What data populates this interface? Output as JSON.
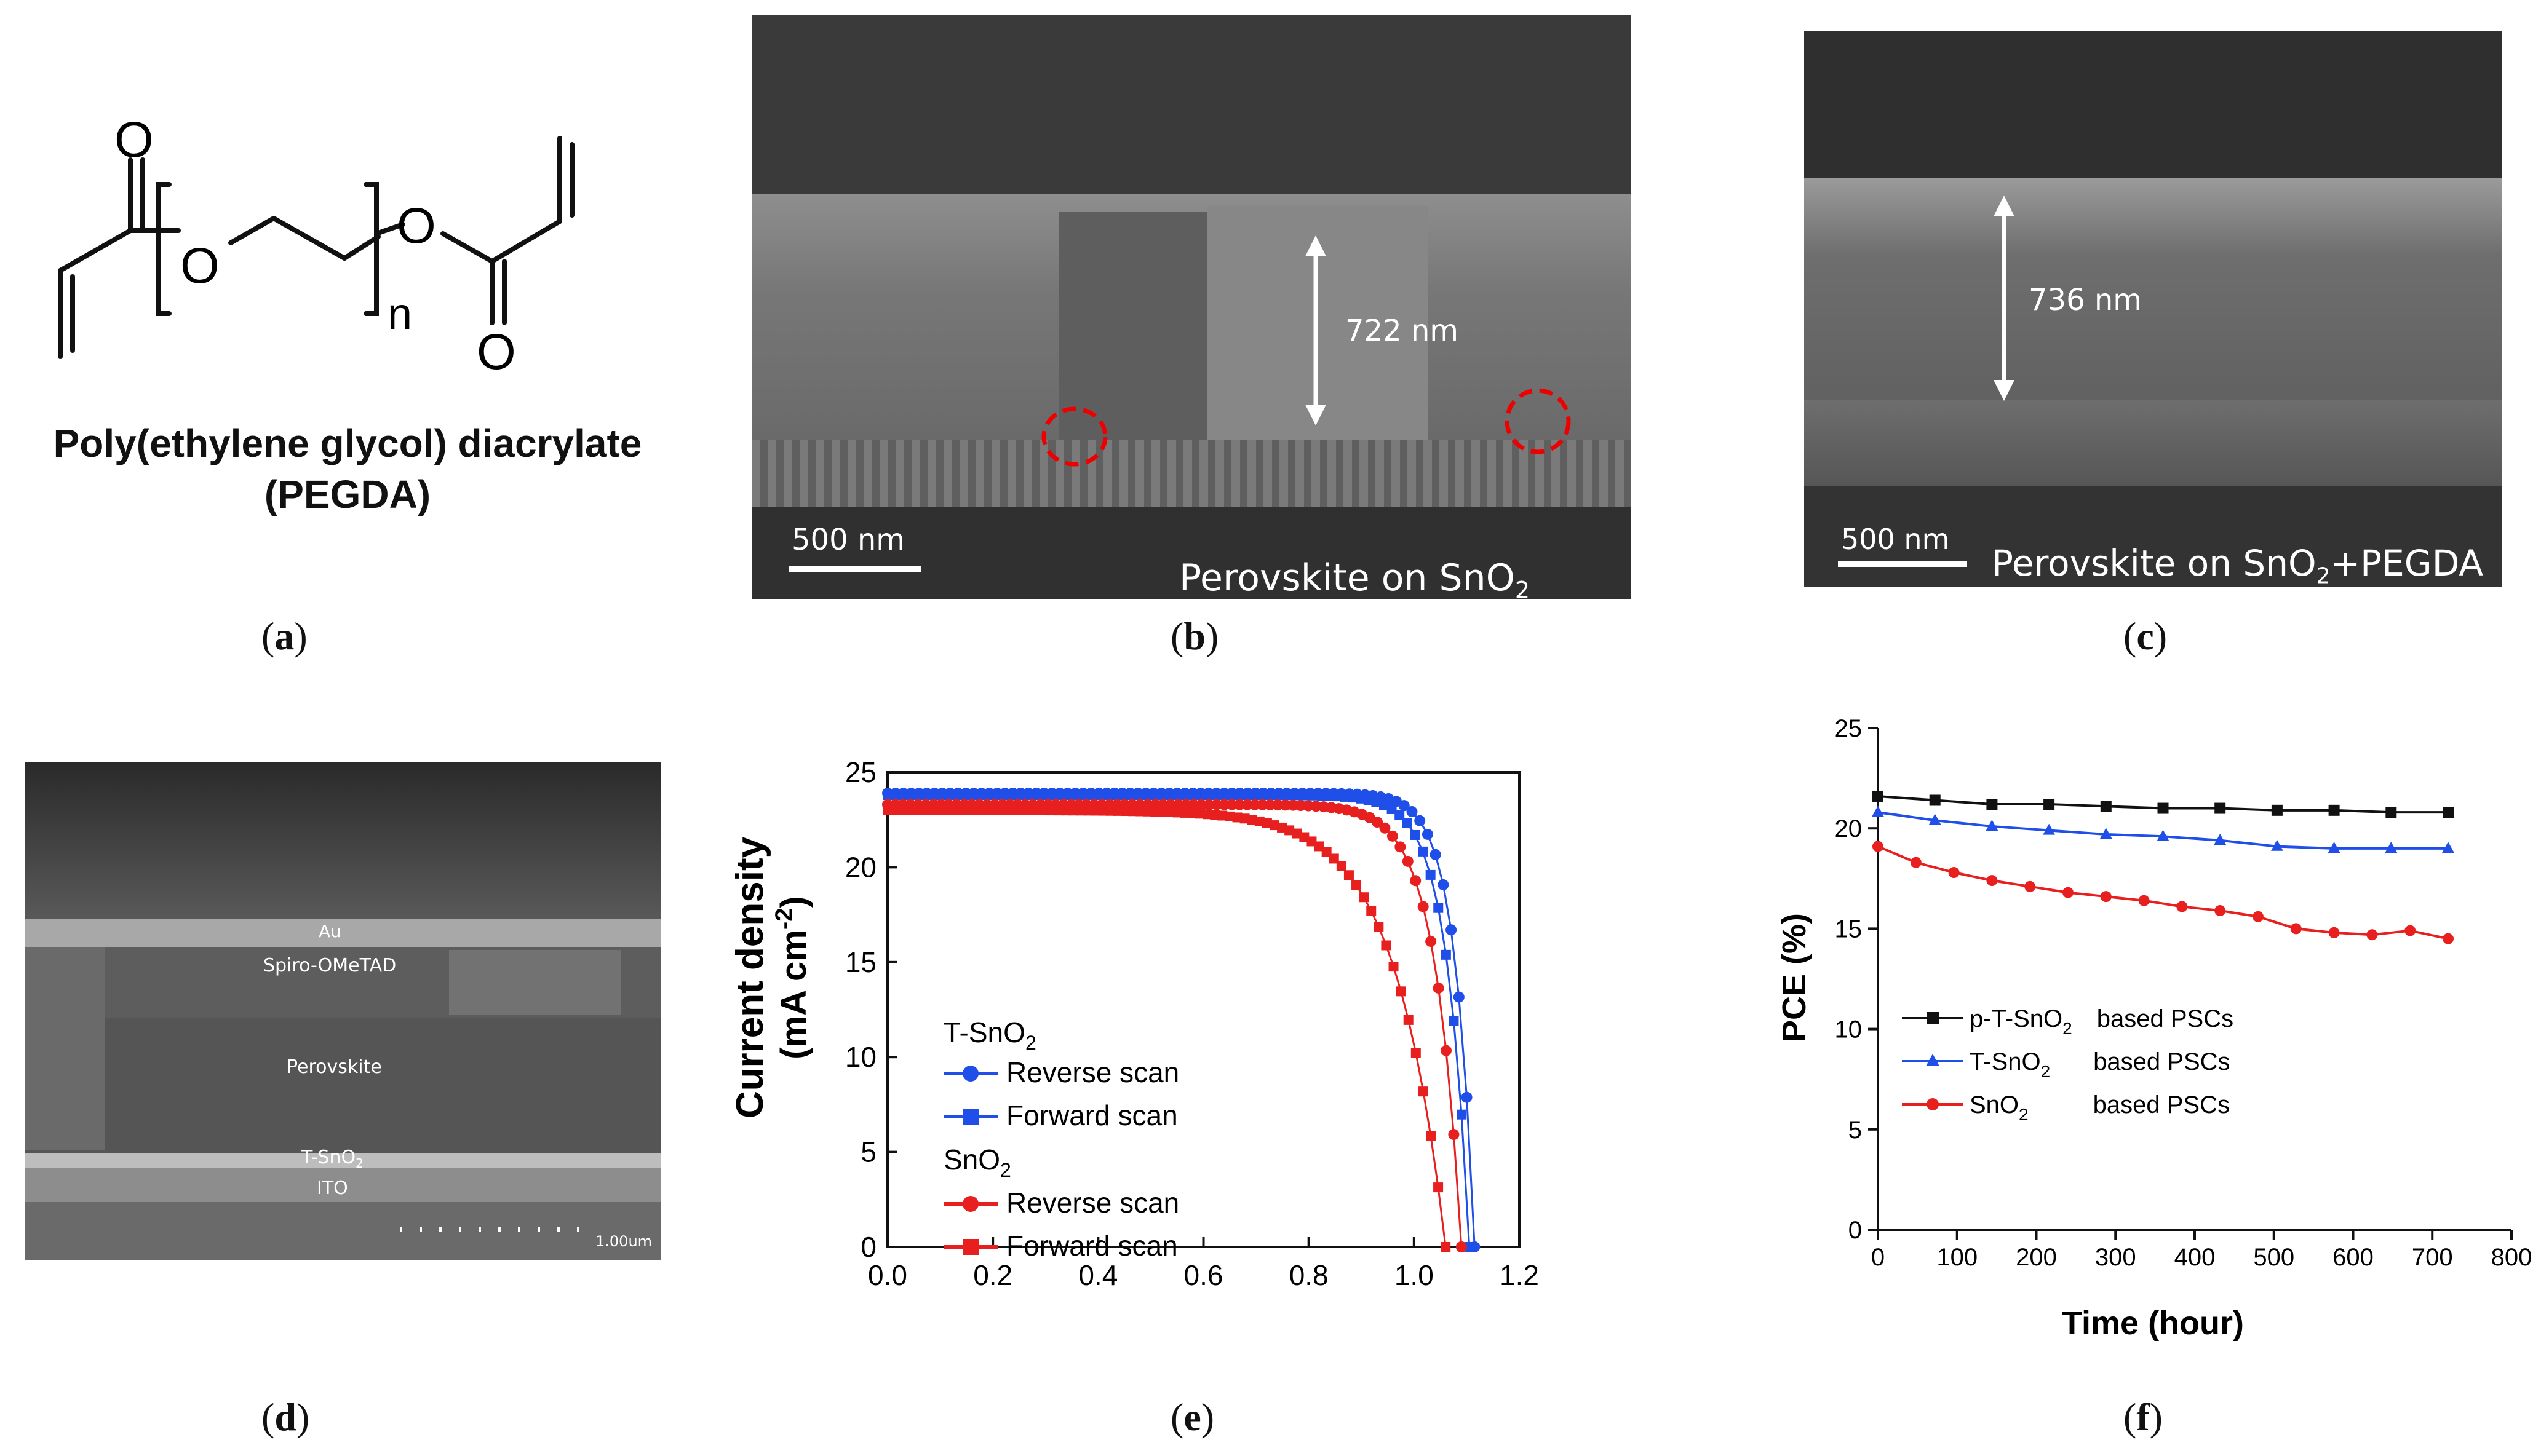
{
  "panels": {
    "a": {
      "label": "a",
      "mol_title": "Poly(ethylene glycol) diacrylate",
      "mol_abbrev": "(PEGDA)",
      "atoms": {
        "o1": "O",
        "o2": "O",
        "o3": "O",
        "o4": "O",
        "n": "n"
      }
    },
    "b": {
      "label": "b",
      "thickness": "722 nm",
      "scalebar": "500 nm",
      "caption_main": "Perovskite on SnO",
      "caption_sub": "2"
    },
    "c": {
      "label": "c",
      "thickness": "736 nm",
      "scalebar": "500 nm",
      "caption_main": "Perovskite on SnO",
      "caption_sub": "2",
      "caption_tail": "+PEGDA"
    },
    "d": {
      "label": "d",
      "layers": {
        "au": "Au",
        "spiro": "Spiro-OMeTAD",
        "perov": "Perovskite",
        "tsno_main": "T-SnO",
        "tsno_sub": "2",
        "ito": "ITO"
      },
      "scalebar": "1.00um"
    },
    "e": {
      "label": "e"
    },
    "f": {
      "label": "f"
    }
  },
  "chart_data": [
    {
      "type": "scatter",
      "panel": "e",
      "title": "",
      "xlabel": "",
      "ylabel": "Current density",
      "ylabel_unit_main": "(mA cm",
      "ylabel_unit_sup": "-2",
      "ylabel_unit_tail": ")",
      "xlim": [
        0,
        1.2
      ],
      "ylim": [
        0,
        25
      ],
      "xticks": [
        "0.0",
        "0.2",
        "0.4",
        "0.6",
        "0.8",
        "1.0",
        "1.2"
      ],
      "yticks": [
        "0",
        "5",
        "10",
        "15",
        "20",
        "25"
      ],
      "legend": {
        "group1_main": "T-SnO",
        "group1_sub": "2",
        "group2_main": "SnO",
        "group2_sub": "2"
      },
      "series": [
        {
          "name": "Reverse scan",
          "group": "T-SnO2",
          "color": "#1f4fe8",
          "marker": "circle",
          "jsc": 23.9,
          "voc": 1.115,
          "shape": 30
        },
        {
          "name": "Forward scan",
          "group": "T-SnO2",
          "color": "#1f4fe8",
          "marker": "square",
          "jsc": 23.8,
          "voc": 1.105,
          "shape": 26
        },
        {
          "name": "Reverse scan",
          "group": "SnO2",
          "color": "#e81f1f",
          "marker": "circle",
          "jsc": 23.3,
          "voc": 1.09,
          "shape": 22
        },
        {
          "name": "Forward scan",
          "group": "SnO2",
          "color": "#e81f1f",
          "marker": "square",
          "jsc": 23.0,
          "voc": 1.06,
          "shape": 11
        }
      ]
    },
    {
      "type": "line",
      "panel": "f",
      "title": "",
      "xlabel": "Time (hour)",
      "ylabel": "PCE (%)",
      "xlim": [
        0,
        800
      ],
      "ylim": [
        0,
        25
      ],
      "xticks": [
        "0",
        "100",
        "200",
        "300",
        "400",
        "500",
        "600",
        "700",
        "800"
      ],
      "yticks": [
        "0",
        "5",
        "10",
        "15",
        "20",
        "25"
      ],
      "series": [
        {
          "name_main": "p-T-SnO",
          "name_sub": "2",
          "suffix": "based PSCs",
          "color": "#111111",
          "marker": "square",
          "x": [
            0,
            72,
            144,
            216,
            288,
            360,
            432,
            504,
            576,
            648,
            720
          ],
          "y": [
            21.6,
            21.4,
            21.2,
            21.2,
            21.1,
            21.0,
            21.0,
            20.9,
            20.9,
            20.8,
            20.8
          ]
        },
        {
          "name_main": "T-SnO",
          "name_sub": "2",
          "suffix": "based PSCs",
          "color": "#1f4fe8",
          "marker": "triangle",
          "x": [
            0,
            72,
            144,
            216,
            288,
            360,
            432,
            504,
            576,
            648,
            720
          ],
          "y": [
            20.8,
            20.4,
            20.1,
            19.9,
            19.7,
            19.6,
            19.4,
            19.1,
            19.0,
            19.0,
            19.0
          ]
        },
        {
          "name_main": "SnO",
          "name_sub": "2",
          "suffix": "based PSCs",
          "color": "#e81f1f",
          "marker": "circle",
          "x": [
            0,
            48,
            96,
            144,
            192,
            240,
            288,
            336,
            384,
            432,
            480,
            528,
            576,
            624,
            672,
            720
          ],
          "y": [
            19.1,
            18.3,
            17.8,
            17.4,
            17.1,
            16.8,
            16.6,
            16.4,
            16.1,
            15.9,
            15.6,
            15.0,
            14.8,
            14.7,
            14.9,
            14.5
          ]
        }
      ]
    }
  ]
}
